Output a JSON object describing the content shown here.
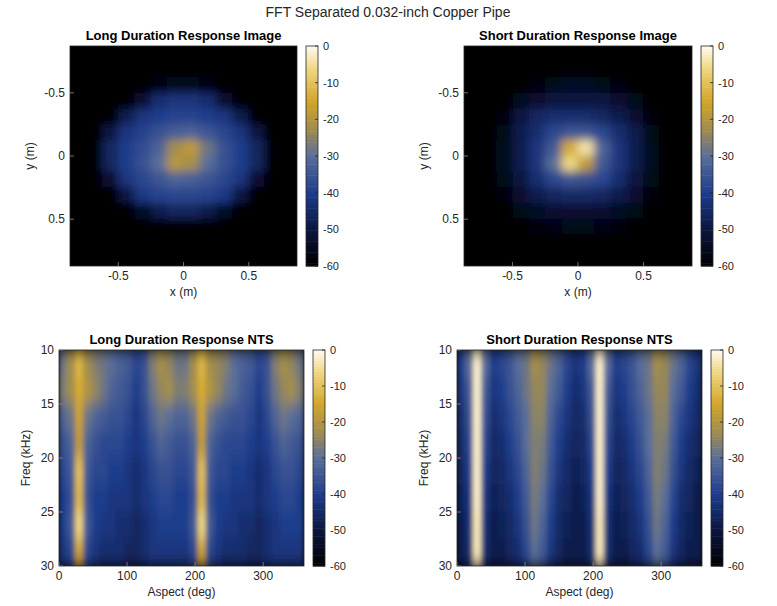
{
  "title": "FFT Separated 0.032-inch Copper Pipe",
  "chart_data": [
    {
      "type": "heatmap",
      "title": "Long Duration Response Image",
      "xlabel": "x (m)",
      "ylabel": "y (m)",
      "xlim": [
        -0.87,
        0.87
      ],
      "ylim": [
        0.87,
        -0.87
      ],
      "xticks": [
        -0.5,
        0,
        0.5
      ],
      "yticks": [
        -0.5,
        0,
        0.5
      ],
      "colorbar_lim": [
        -60,
        0
      ],
      "colorbar_ticks": [
        -60,
        -50,
        -40,
        -30,
        -20,
        -10,
        0
      ],
      "x": [
        -0.808,
        -0.684,
        -0.559,
        -0.435,
        -0.311,
        -0.186,
        -0.062,
        0.062,
        0.186,
        0.311,
        0.435,
        0.559,
        0.684,
        0.808
      ],
      "y": [
        -0.808,
        -0.684,
        -0.559,
        -0.435,
        -0.311,
        -0.186,
        -0.062,
        0.062,
        0.186,
        0.311,
        0.435,
        0.559,
        0.684,
        0.808
      ],
      "cells": [
        [
          -60,
          -60,
          -60,
          -60,
          -60,
          -60,
          -60,
          -60,
          -60,
          -60,
          -60,
          -60,
          -60,
          -60
        ],
        [
          -60,
          -60,
          -60,
          -60,
          -60,
          -60,
          -60,
          -60,
          -60,
          -60,
          -60,
          -60,
          -60,
          -60
        ],
        [
          -60,
          -60,
          -60,
          -60,
          -60,
          -57,
          -55,
          -55,
          -57,
          -60,
          -60,
          -60,
          -60,
          -60
        ],
        [
          -60,
          -60,
          -60,
          -60,
          -52,
          -44,
          -42,
          -42,
          -44,
          -52,
          -60,
          -60,
          -60,
          -60
        ],
        [
          -60,
          -60,
          -60,
          -48,
          -42,
          -40,
          -39,
          -39,
          -40,
          -42,
          -48,
          -60,
          -60,
          -60
        ],
        [
          -60,
          -60,
          -50,
          -42,
          -39,
          -36,
          -33,
          -32,
          -35,
          -38,
          -42,
          -50,
          -60,
          -60
        ],
        [
          -60,
          -60,
          -46,
          -40,
          -37,
          -32,
          -22,
          -18,
          -28,
          -36,
          -40,
          -46,
          -60,
          -60
        ],
        [
          -60,
          -60,
          -46,
          -40,
          -36,
          -30,
          -19,
          -22,
          -30,
          -36,
          -40,
          -46,
          -60,
          -60
        ],
        [
          -60,
          -60,
          -52,
          -42,
          -38,
          -35,
          -32,
          -33,
          -35,
          -38,
          -42,
          -52,
          -60,
          -60
        ],
        [
          -60,
          -60,
          -60,
          -50,
          -41,
          -39,
          -38,
          -38,
          -39,
          -41,
          -50,
          -60,
          -60,
          -60
        ],
        [
          -60,
          -60,
          -60,
          -60,
          -54,
          -48,
          -46,
          -46,
          -48,
          -54,
          -60,
          -60,
          -60,
          -60
        ],
        [
          -60,
          -60,
          -60,
          -60,
          -60,
          -60,
          -60,
          -60,
          -60,
          -60,
          -60,
          -60,
          -60,
          -60
        ],
        [
          -60,
          -60,
          -60,
          -60,
          -60,
          -60,
          -60,
          -60,
          -60,
          -60,
          -60,
          -60,
          -60,
          -60
        ],
        [
          -60,
          -60,
          -60,
          -60,
          -60,
          -60,
          -60,
          -60,
          -60,
          -60,
          -60,
          -60,
          -60,
          -60
        ]
      ]
    },
    {
      "type": "heatmap",
      "title": "Short Duration Response Image",
      "xlabel": "x (m)",
      "ylabel": "y (m)",
      "xlim": [
        -0.87,
        0.87
      ],
      "ylim": [
        0.87,
        -0.87
      ],
      "xticks": [
        -0.5,
        0,
        0.5
      ],
      "yticks": [
        -0.5,
        0,
        0.5
      ],
      "colorbar_lim": [
        -60,
        0
      ],
      "colorbar_ticks": [
        -60,
        -50,
        -40,
        -30,
        -20,
        -10,
        0
      ],
      "x": [
        -0.808,
        -0.684,
        -0.559,
        -0.435,
        -0.311,
        -0.186,
        -0.062,
        0.062,
        0.186,
        0.311,
        0.435,
        0.559,
        0.684,
        0.808
      ],
      "y": [
        -0.808,
        -0.684,
        -0.559,
        -0.435,
        -0.311,
        -0.186,
        -0.062,
        0.062,
        0.186,
        0.311,
        0.435,
        0.559,
        0.684,
        0.808
      ],
      "cells": [
        [
          -60,
          -60,
          -60,
          -60,
          -60,
          -60,
          -60,
          -60,
          -60,
          -60,
          -60,
          -60,
          -60,
          -60
        ],
        [
          -60,
          -60,
          -60,
          -60,
          -60,
          -60,
          -60,
          -60,
          -60,
          -60,
          -60,
          -60,
          -60,
          -60
        ],
        [
          -60,
          -60,
          -60,
          -60,
          -58,
          -56,
          -54,
          -54,
          -56,
          -58,
          -60,
          -60,
          -60,
          -60
        ],
        [
          -60,
          -60,
          -60,
          -55,
          -52,
          -50,
          -50,
          -50,
          -50,
          -52,
          -55,
          -60,
          -60,
          -60
        ],
        [
          -60,
          -60,
          -58,
          -50,
          -46,
          -44,
          -44,
          -44,
          -46,
          -48,
          -52,
          -58,
          -60,
          -60
        ],
        [
          -60,
          -60,
          -56,
          -48,
          -44,
          -38,
          -35,
          -35,
          -38,
          -44,
          -48,
          -56,
          -60,
          -60
        ],
        [
          -60,
          -60,
          -55,
          -48,
          -42,
          -34,
          -14,
          -4,
          -32,
          -42,
          -48,
          -55,
          -60,
          -60
        ],
        [
          -60,
          -60,
          -55,
          -48,
          -42,
          -30,
          -6,
          -18,
          -34,
          -42,
          -48,
          -55,
          -60,
          -60
        ],
        [
          -60,
          -60,
          -56,
          -50,
          -44,
          -38,
          -35,
          -36,
          -38,
          -44,
          -50,
          -56,
          -60,
          -60
        ],
        [
          -60,
          -60,
          -58,
          -52,
          -48,
          -46,
          -45,
          -45,
          -46,
          -48,
          -52,
          -58,
          -60,
          -60
        ],
        [
          -60,
          -60,
          -60,
          -56,
          -54,
          -52,
          -52,
          -52,
          -52,
          -54,
          -56,
          -60,
          -60,
          -60
        ],
        [
          -60,
          -60,
          -60,
          -60,
          -58,
          -57,
          -56,
          -56,
          -57,
          -58,
          -60,
          -60,
          -60,
          -60
        ],
        [
          -60,
          -60,
          -60,
          -60,
          -60,
          -60,
          -60,
          -60,
          -60,
          -60,
          -60,
          -60,
          -60,
          -60
        ],
        [
          -60,
          -60,
          -60,
          -60,
          -60,
          -60,
          -60,
          -60,
          -60,
          -60,
          -60,
          -60,
          -60,
          -60
        ]
      ]
    },
    {
      "type": "heatmap",
      "title": "Long Duration Response NTS",
      "xlabel": "Aspect (deg)",
      "ylabel": "Freq (kHz)",
      "xlim": [
        0,
        360
      ],
      "ylim": [
        30,
        10
      ],
      "xticks": [
        0,
        100,
        200,
        300
      ],
      "yticks": [
        10,
        15,
        20,
        25,
        30
      ],
      "colorbar_lim": [
        -60,
        0
      ],
      "colorbar_ticks": [
        -60,
        -50,
        -40,
        -30,
        -20,
        -10,
        0
      ],
      "x": [
        6,
        18,
        30,
        42,
        54,
        66,
        78,
        90,
        102,
        114,
        126,
        138,
        150,
        162,
        174,
        186,
        198,
        210,
        222,
        234,
        246,
        258,
        270,
        282,
        294,
        306,
        318,
        330,
        342,
        354
      ],
      "y": [
        11.25,
        13.75,
        16.25,
        18.75,
        21.25,
        23.75,
        26.25,
        28.75
      ],
      "cells": [
        [
          -28,
          -22,
          -12,
          -22,
          -26,
          -28,
          -30,
          -32,
          -34,
          -38,
          -36,
          -26,
          -22,
          -24,
          -28,
          -28,
          -22,
          -12,
          -22,
          -24,
          -26,
          -30,
          -32,
          -34,
          -38,
          -36,
          -26,
          -22,
          -24,
          -28
        ],
        [
          -26,
          -22,
          -14,
          -20,
          -24,
          -28,
          -32,
          -34,
          -36,
          -40,
          -36,
          -28,
          -24,
          -22,
          -26,
          -26,
          -22,
          -14,
          -20,
          -24,
          -28,
          -30,
          -34,
          -36,
          -40,
          -36,
          -28,
          -24,
          -22,
          -26
        ],
        [
          -32,
          -28,
          -16,
          -28,
          -32,
          -34,
          -36,
          -36,
          -38,
          -42,
          -38,
          -32,
          -28,
          -30,
          -32,
          -32,
          -28,
          -16,
          -28,
          -32,
          -34,
          -36,
          -36,
          -38,
          -42,
          -38,
          -32,
          -28,
          -30,
          -32
        ],
        [
          -36,
          -32,
          -18,
          -32,
          -36,
          -38,
          -38,
          -38,
          -40,
          -42,
          -40,
          -36,
          -32,
          -34,
          -36,
          -36,
          -32,
          -18,
          -32,
          -36,
          -38,
          -38,
          -38,
          -40,
          -42,
          -40,
          -36,
          -32,
          -34,
          -36
        ],
        [
          -38,
          -34,
          -10,
          -34,
          -38,
          -38,
          -40,
          -40,
          -42,
          -44,
          -42,
          -38,
          -36,
          -36,
          -38,
          -38,
          -34,
          -10,
          -34,
          -38,
          -38,
          -40,
          -40,
          -42,
          -44,
          -42,
          -38,
          -36,
          -36,
          -38
        ],
        [
          -40,
          -36,
          -12,
          -36,
          -40,
          -40,
          -42,
          -42,
          -42,
          -44,
          -42,
          -40,
          -38,
          -38,
          -40,
          -40,
          -36,
          -12,
          -36,
          -40,
          -40,
          -42,
          -42,
          -42,
          -44,
          -42,
          -40,
          -38,
          -38,
          -40
        ],
        [
          -40,
          -34,
          -6,
          -34,
          -40,
          -42,
          -42,
          -44,
          -44,
          -46,
          -44,
          -42,
          -40,
          -40,
          -40,
          -40,
          -34,
          -6,
          -34,
          -40,
          -42,
          -42,
          -44,
          -44,
          -46,
          -44,
          -42,
          -40,
          -40,
          -40
        ],
        [
          -42,
          -38,
          -16,
          -38,
          -42,
          -44,
          -44,
          -44,
          -46,
          -46,
          -44,
          -42,
          -42,
          -42,
          -42,
          -42,
          -38,
          -16,
          -38,
          -42,
          -44,
          -44,
          -44,
          -46,
          -46,
          -44,
          -42,
          -42,
          -42,
          -42
        ]
      ]
    },
    {
      "type": "heatmap",
      "title": "Short Duration Response NTS",
      "xlabel": "Aspect (deg)",
      "ylabel": "Freq (kHz)",
      "xlim": [
        0,
        360
      ],
      "ylim": [
        30,
        10
      ],
      "xticks": [
        0,
        100,
        200,
        300
      ],
      "yticks": [
        10,
        15,
        20,
        25,
        30
      ],
      "colorbar_lim": [
        -60,
        0
      ],
      "colorbar_ticks": [
        -60,
        -50,
        -40,
        -30,
        -20,
        -10,
        0
      ],
      "x": [
        6,
        18,
        30,
        42,
        54,
        66,
        78,
        90,
        102,
        114,
        126,
        138,
        150,
        162,
        174,
        186,
        198,
        210,
        222,
        234,
        246,
        258,
        270,
        282,
        294,
        306,
        318,
        330,
        342,
        354
      ],
      "y": [
        11.25,
        13.75,
        16.25,
        18.75,
        21.25,
        23.75,
        26.25,
        28.75
      ],
      "cells": [
        [
          -40,
          -30,
          -2,
          -30,
          -40,
          -38,
          -35,
          -30,
          -28,
          -22,
          -24,
          -28,
          -32,
          -38,
          -42,
          -40,
          -30,
          -2,
          -30,
          -40,
          -38,
          -35,
          -30,
          -28,
          -22,
          -24,
          -28,
          -32,
          -38,
          -42
        ],
        [
          -42,
          -34,
          -2,
          -34,
          -42,
          -40,
          -36,
          -32,
          -28,
          -24,
          -24,
          -30,
          -34,
          -40,
          -44,
          -42,
          -34,
          -2,
          -34,
          -42,
          -40,
          -36,
          -32,
          -28,
          -24,
          -24,
          -30,
          -34,
          -40,
          -44
        ],
        [
          -44,
          -36,
          -2,
          -36,
          -44,
          -42,
          -38,
          -34,
          -30,
          -25,
          -25,
          -32,
          -38,
          -42,
          -45,
          -44,
          -36,
          -2,
          -36,
          -44,
          -42,
          -38,
          -34,
          -30,
          -25,
          -25,
          -32,
          -38,
          -42,
          -45
        ],
        [
          -45,
          -38,
          -2,
          -38,
          -45,
          -44,
          -40,
          -36,
          -30,
          -26,
          -27,
          -34,
          -40,
          -44,
          -46,
          -45,
          -38,
          -2,
          -38,
          -45,
          -44,
          -40,
          -36,
          -30,
          -26,
          -27,
          -34,
          -40,
          -44,
          -46
        ],
        [
          -46,
          -40,
          -2,
          -40,
          -46,
          -45,
          -42,
          -38,
          -32,
          -26,
          -28,
          -36,
          -42,
          -45,
          -47,
          -46,
          -40,
          -2,
          -40,
          -46,
          -45,
          -42,
          -38,
          -32,
          -26,
          -28,
          -36,
          -42,
          -45,
          -47
        ],
        [
          -47,
          -42,
          -2,
          -42,
          -47,
          -46,
          -44,
          -40,
          -34,
          -27,
          -30,
          -38,
          -44,
          -46,
          -48,
          -47,
          -42,
          -2,
          -42,
          -47,
          -46,
          -44,
          -40,
          -34,
          -27,
          -30,
          -38,
          -44,
          -46,
          -48
        ],
        [
          -48,
          -43,
          -3,
          -43,
          -48,
          -47,
          -45,
          -42,
          -36,
          -28,
          -32,
          -40,
          -45,
          -47,
          -48,
          -48,
          -43,
          -3,
          -43,
          -48,
          -47,
          -45,
          -42,
          -36,
          -28,
          -32,
          -40,
          -45,
          -47,
          -48
        ],
        [
          -48,
          -44,
          -3,
          -44,
          -48,
          -48,
          -46,
          -44,
          -38,
          -30,
          -34,
          -42,
          -46,
          -48,
          -48,
          -48,
          -44,
          -3,
          -44,
          -48,
          -48,
          -46,
          -44,
          -38,
          -30,
          -34,
          -42,
          -46,
          -48,
          -48
        ]
      ]
    }
  ]
}
